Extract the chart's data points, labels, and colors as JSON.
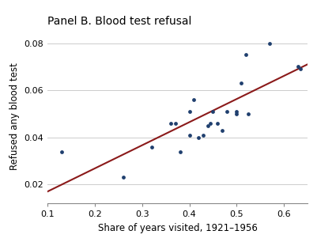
{
  "title": "Panel B. Blood test refusal",
  "xlabel": "Share of years visited, 1921–1956",
  "ylabel": "Refused any blood test",
  "xlim": [
    0.1,
    0.65
  ],
  "ylim": [
    0.012,
    0.086
  ],
  "xticks": [
    0.1,
    0.2,
    0.3,
    0.4,
    0.5,
    0.6
  ],
  "yticks": [
    0.02,
    0.04,
    0.06,
    0.08
  ],
  "scatter_x": [
    0.13,
    0.26,
    0.32,
    0.36,
    0.37,
    0.38,
    0.4,
    0.4,
    0.41,
    0.42,
    0.43,
    0.44,
    0.445,
    0.45,
    0.46,
    0.47,
    0.48,
    0.5,
    0.5,
    0.51,
    0.52,
    0.525,
    0.57,
    0.63,
    0.635
  ],
  "scatter_y": [
    0.034,
    0.023,
    0.036,
    0.046,
    0.046,
    0.034,
    0.041,
    0.051,
    0.056,
    0.04,
    0.041,
    0.045,
    0.046,
    0.051,
    0.046,
    0.043,
    0.051,
    0.05,
    0.051,
    0.063,
    0.075,
    0.05,
    0.08,
    0.07,
    0.069
  ],
  "line_x": [
    0.1,
    0.65
  ],
  "line_y": [
    0.017,
    0.071
  ],
  "dot_color": "#1f3f6e",
  "line_color": "#8b1a1a",
  "dot_size": 12,
  "line_width": 1.5,
  "title_fontsize": 10,
  "label_fontsize": 8.5,
  "tick_fontsize": 8,
  "bg_color": "#ffffff",
  "grid_color": "#cccccc"
}
